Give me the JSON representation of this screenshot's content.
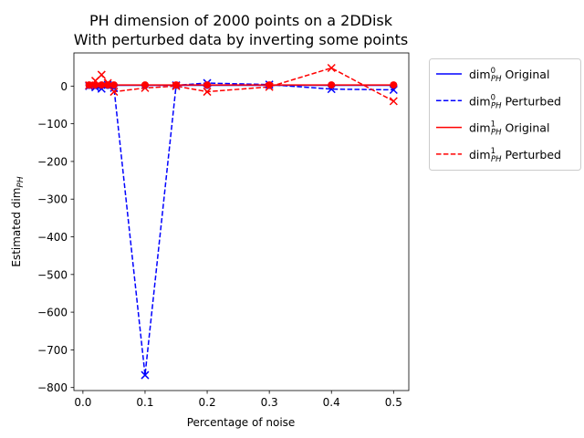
{
  "chart_data": {
    "type": "line",
    "title": [
      "PH dimension of 2000 points on a 2DDisk",
      "With perturbed data by inverting some points"
    ],
    "xlabel": "Percentage of noise",
    "ylabel": "Estimated dim",
    "ylabel_sub": "PH",
    "xlim": [
      -0.0145,
      0.5245
    ],
    "ylim": [
      -808,
      88
    ],
    "xticks": [
      0.0,
      0.1,
      0.2,
      0.3,
      0.4,
      0.5
    ],
    "xtick_labels": [
      "0.0",
      "0.1",
      "0.2",
      "0.3",
      "0.4",
      "0.5"
    ],
    "yticks": [
      0,
      -100,
      -200,
      -300,
      -400,
      -500,
      -600,
      -700,
      -800
    ],
    "ytick_labels": [
      "0",
      "−100",
      "−200",
      "−300",
      "−400",
      "−500",
      "−600",
      "−700",
      "−800"
    ],
    "legend_position": "outside-right",
    "x": [
      0.01,
      0.02,
      0.03,
      0.04,
      0.05,
      0.1,
      0.15,
      0.2,
      0.3,
      0.4,
      0.5
    ],
    "series": [
      {
        "legend_sup": "0",
        "legend_sub": "PH",
        "legend_text": "Original",
        "color": "#0000ff",
        "linestyle": "solid",
        "marker": "circle",
        "values": [
          2,
          2,
          2,
          2,
          2,
          2,
          2,
          2,
          2,
          2,
          2
        ]
      },
      {
        "legend_sup": "0",
        "legend_sub": "PH",
        "legend_text": "Perturbed",
        "color": "#0000ff",
        "linestyle": "dashed",
        "marker": "x",
        "values": [
          0,
          -3,
          -7,
          3,
          -5,
          -767,
          2,
          8,
          4,
          -8,
          -10
        ]
      },
      {
        "legend_sup": "1",
        "legend_sub": "PH",
        "legend_text": "Original",
        "color": "#ff0000",
        "linestyle": "solid",
        "marker": "circle",
        "values": [
          3,
          3,
          3,
          3,
          3,
          3,
          3,
          3,
          3,
          3,
          3
        ]
      },
      {
        "legend_sup": "1",
        "legend_sub": "PH",
        "legend_text": "Perturbed",
        "color": "#ff0000",
        "linestyle": "dashed",
        "marker": "x",
        "values": [
          2,
          14,
          30,
          8,
          -15,
          -5,
          0,
          -15,
          -2,
          48,
          -40
        ]
      }
    ]
  }
}
